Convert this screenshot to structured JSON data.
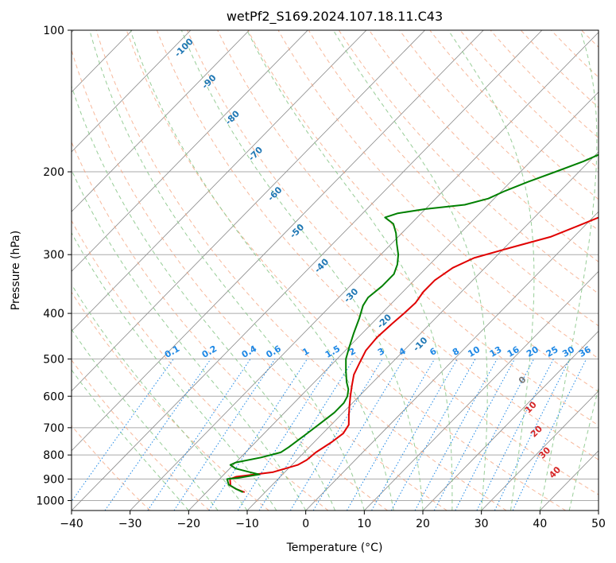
{
  "chart_data": {
    "type": "line",
    "title": "wetPf2_S169.2024.107.18.11.C43",
    "xlabel": "Temperature (°C)",
    "ylabel": "Pressure (hPa)",
    "xlim": [
      -40,
      50
    ],
    "ylim": [
      1050,
      100
    ],
    "y_scale": "log",
    "x_ticks": [
      "−40",
      "−30",
      "−20",
      "−10",
      "0",
      "10",
      "20",
      "30",
      "40",
      "50"
    ],
    "y_ticks": [
      "100",
      "200",
      "300",
      "400",
      "500",
      "600",
      "700",
      "800",
      "900",
      "1000"
    ],
    "grid": true,
    "colors": {
      "temperature": "#e00000",
      "dewpoint": "#008000",
      "dry_adiabats": "#f4a07a",
      "moist_adiabats": "#8cc88c",
      "mixing_ratio": "#1e88e5",
      "isotherms": "#888888",
      "isobars": "#aaaaaa"
    },
    "series": [
      {
        "values": [
          [
            -13.5,
            960
          ],
          [
            -15.5,
            945
          ],
          [
            -17,
            930
          ],
          [
            -18.2,
            900
          ],
          [
            -17.5,
            890
          ],
          [
            -12,
            870
          ],
          [
            -9,
            840
          ],
          [
            -8.3,
            820
          ],
          [
            -8,
            790
          ],
          [
            -7,
            750
          ],
          [
            -6.5,
            720
          ],
          [
            -7,
            690
          ],
          [
            -8.5,
            660
          ],
          [
            -10,
            630
          ],
          [
            -11.5,
            600
          ],
          [
            -13,
            570
          ],
          [
            -14.5,
            540
          ],
          [
            -15.5,
            510
          ],
          [
            -16.5,
            480
          ],
          [
            -16.8,
            450
          ],
          [
            -16.5,
            420
          ],
          [
            -16.2,
            400
          ],
          [
            -16,
            380
          ],
          [
            -16.5,
            360
          ],
          [
            -16.5,
            340
          ],
          [
            -15.5,
            320
          ],
          [
            -13.5,
            305
          ],
          [
            -9,
            290
          ],
          [
            -4,
            275
          ],
          [
            -1,
            260
          ],
          [
            1,
            250
          ],
          [
            3,
            240
          ],
          [
            5,
            230
          ],
          [
            7,
            220
          ],
          [
            9,
            210
          ],
          [
            12,
            200
          ],
          [
            14,
            190
          ],
          [
            17,
            180
          ],
          [
            19.5,
            170
          ],
          [
            21.5,
            160
          ],
          [
            24,
            150
          ],
          [
            26.5,
            140
          ],
          [
            29,
            130
          ],
          [
            31.5,
            120
          ],
          [
            34,
            110
          ],
          [
            37,
            100
          ]
        ]
      },
      {
        "values": [
          [
            -13.8,
            960
          ],
          [
            -15.5,
            945
          ],
          [
            -17.5,
            925
          ],
          [
            -18.7,
            900
          ],
          [
            -17,
            895
          ],
          [
            -14,
            880
          ],
          [
            -16,
            870
          ],
          [
            -19,
            855
          ],
          [
            -20.5,
            840
          ],
          [
            -20,
            830
          ],
          [
            -16.5,
            810
          ],
          [
            -14,
            790
          ],
          [
            -13.5,
            770
          ],
          [
            -13,
            740
          ],
          [
            -12.5,
            710
          ],
          [
            -12,
            680
          ],
          [
            -11.5,
            650
          ],
          [
            -11.5,
            620
          ],
          [
            -12,
            600
          ],
          [
            -13,
            580
          ],
          [
            -14.5,
            560
          ],
          [
            -16.5,
            530
          ],
          [
            -18.5,
            500
          ],
          [
            -20,
            470
          ],
          [
            -21.5,
            440
          ],
          [
            -23,
            410
          ],
          [
            -24.5,
            385
          ],
          [
            -25,
            370
          ],
          [
            -24.5,
            350
          ],
          [
            -24.5,
            330
          ],
          [
            -25.5,
            315
          ],
          [
            -27,
            300
          ],
          [
            -29,
            285
          ],
          [
            -31,
            270
          ],
          [
            -33,
            258
          ],
          [
            -35.5,
            250
          ],
          [
            -34,
            245
          ],
          [
            -30,
            240
          ],
          [
            -24,
            235
          ],
          [
            -21,
            228
          ],
          [
            -19.5,
            220
          ],
          [
            -17,
            210
          ],
          [
            -14,
            200
          ],
          [
            -11,
            190
          ],
          [
            -8.5,
            180
          ],
          [
            -7,
            170
          ],
          [
            -7,
            160
          ],
          [
            -6.5,
            150
          ],
          [
            -5,
            140
          ],
          [
            -3,
            130
          ],
          [
            -0.5,
            120
          ],
          [
            1.5,
            110
          ],
          [
            2.5,
            100
          ]
        ]
      }
    ],
    "mixing_ratio_labels": [
      "0.1",
      "0.2",
      "0.4",
      "0.6",
      "1",
      "1.5",
      "2",
      "3",
      "4",
      "6",
      "8",
      "10",
      "13",
      "16",
      "20",
      "25",
      "30",
      "36"
    ],
    "mixing_ratio_values": [
      0.1,
      0.2,
      0.4,
      0.6,
      1,
      1.5,
      2,
      3,
      4,
      6,
      8,
      10,
      13,
      16,
      20,
      25,
      30,
      36
    ],
    "dry_adiabat_labels": [
      "-100",
      "-90",
      "-80",
      "-70",
      "-60",
      "-50",
      "-40",
      "-30",
      "-20",
      "-10"
    ],
    "moist_adiabat_labels": [
      "0",
      "10",
      "20",
      "30",
      "40"
    ]
  }
}
